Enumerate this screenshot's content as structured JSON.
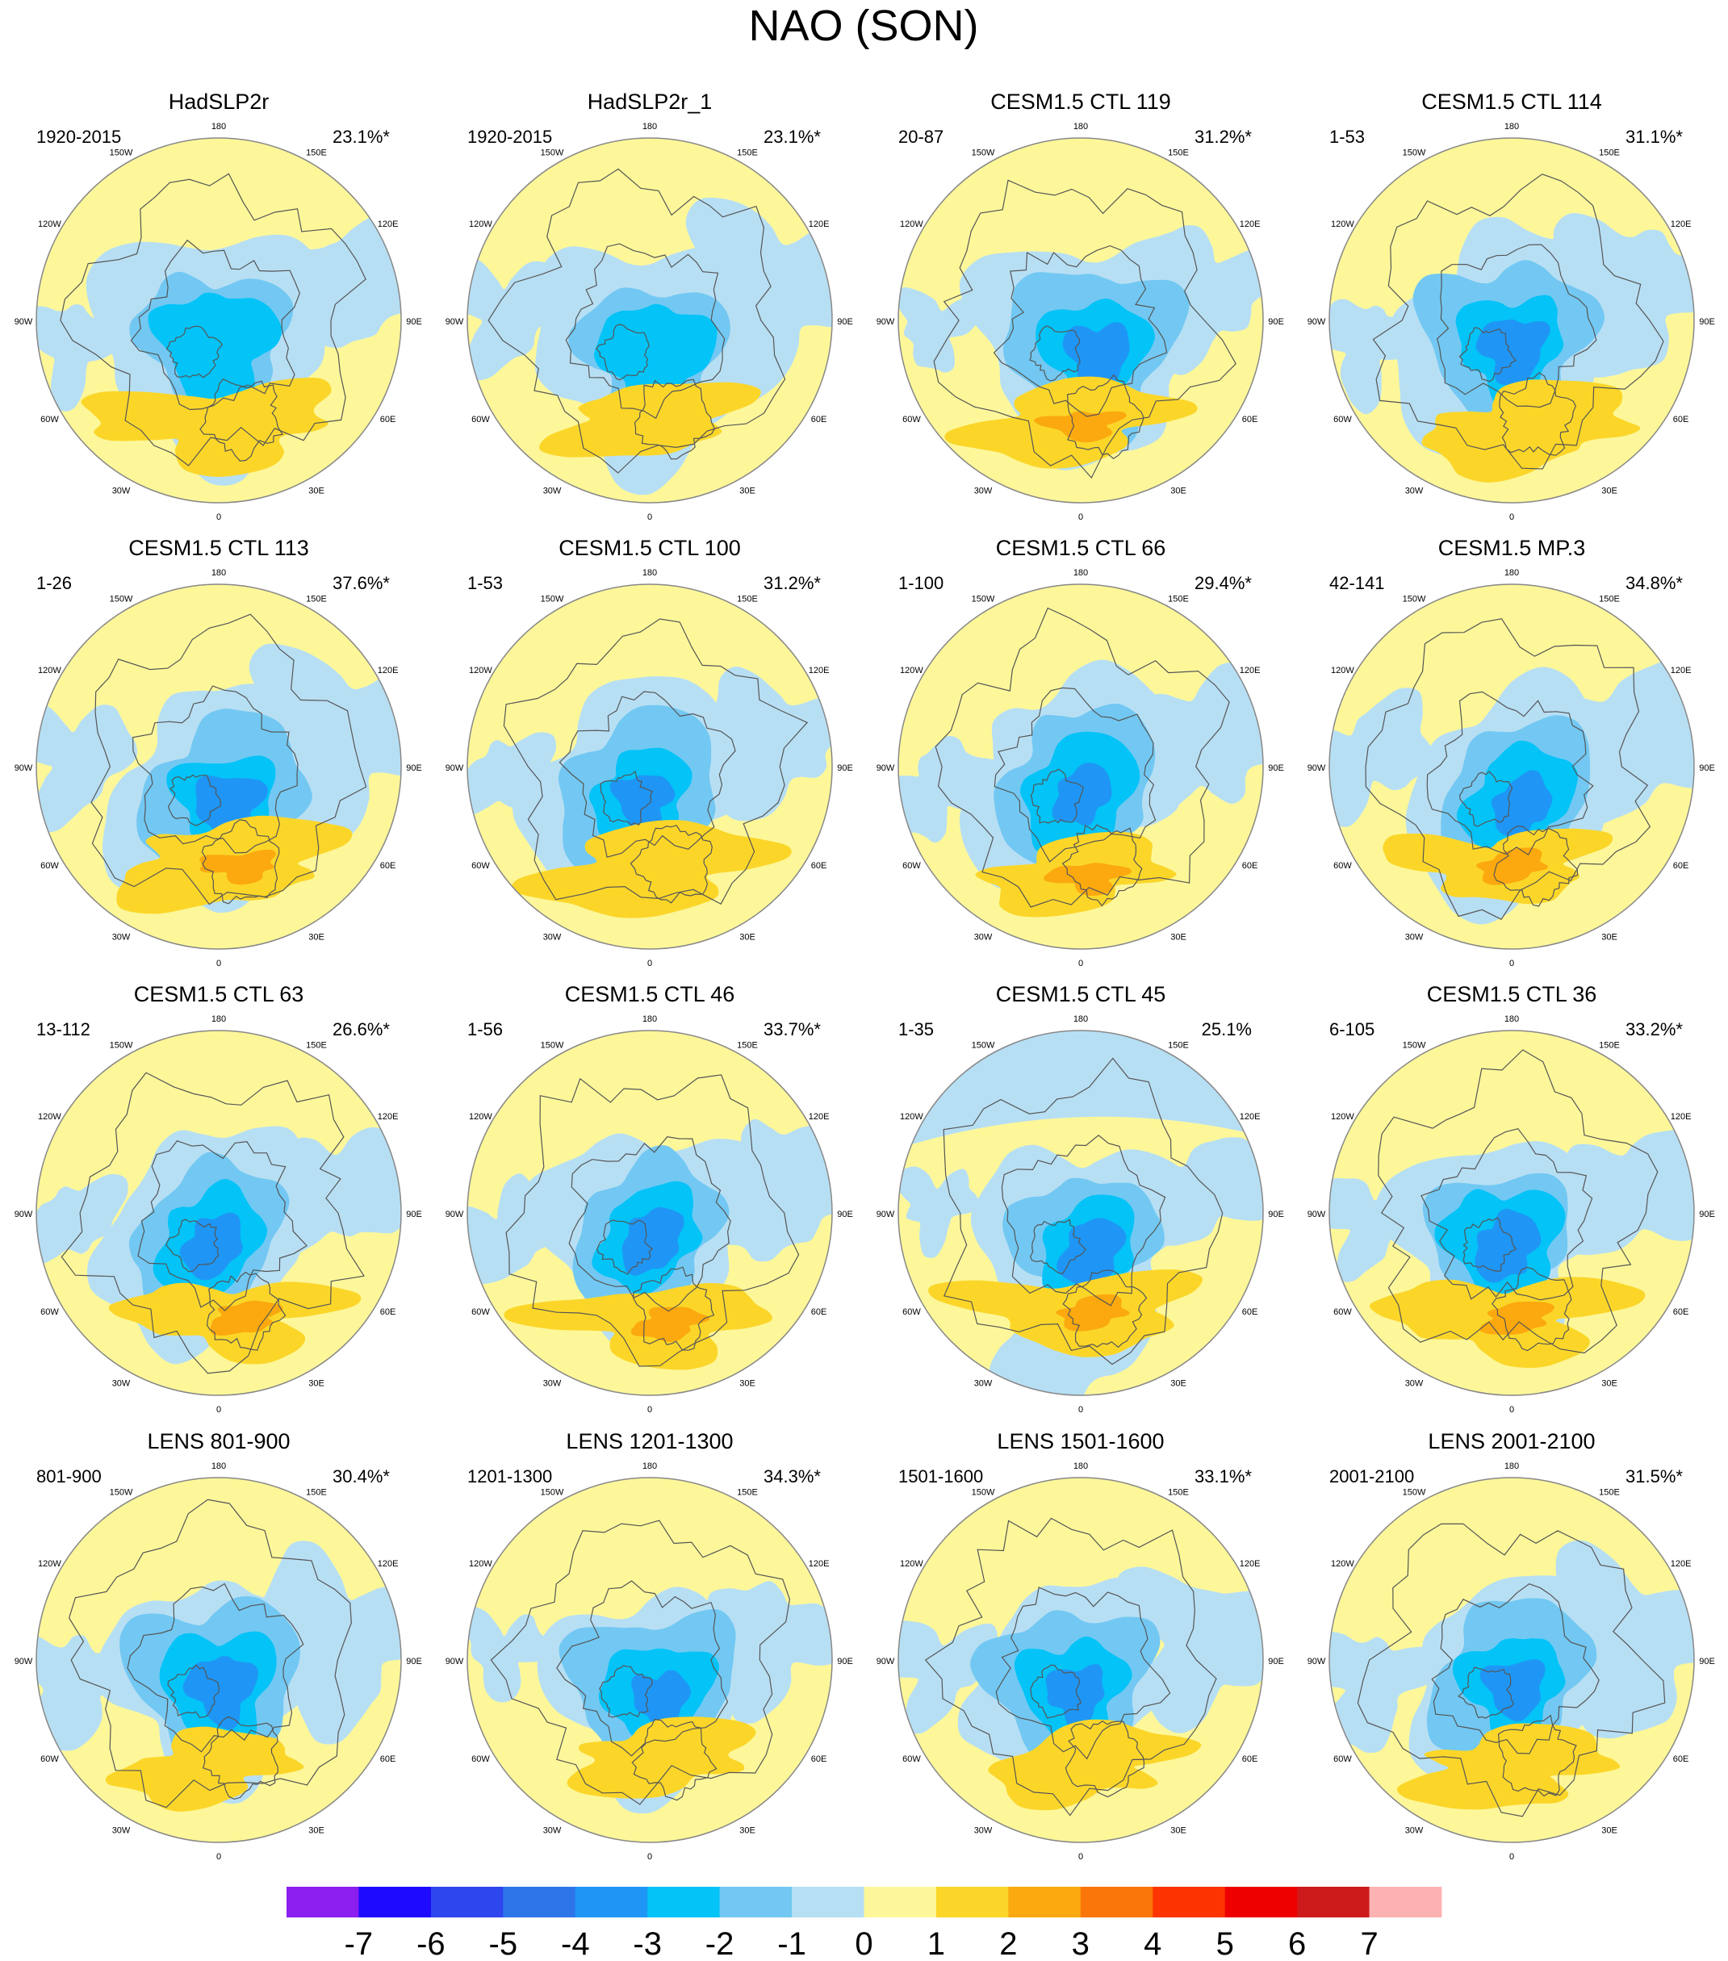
{
  "chart_data": {
    "type": "polar-contour-map-panels",
    "title": "NAO (SON)",
    "field_units": "",
    "longitude_labels": [
      "180",
      "150E",
      "120E",
      "90E",
      "60E",
      "30E",
      "0",
      "30W",
      "60W",
      "90W",
      "120W",
      "150W"
    ],
    "colorbar": {
      "ticks": [
        "-7",
        "-6",
        "-5",
        "-4",
        "-3",
        "-2",
        "-1",
        "0",
        "1",
        "2",
        "3",
        "4",
        "5",
        "6",
        "7"
      ],
      "colors": [
        "#8a1ff0",
        "#1e0aff",
        "#2d46ee",
        "#2f75ea",
        "#1f96f5",
        "#03c3f7",
        "#72c8f2",
        "#b7dff4",
        "#fdf79a",
        "#fbd629",
        "#fba90e",
        "#fb760a",
        "#fd3402",
        "#ee0000",
        "#cd1a1a",
        "#fcb2b2"
      ]
    },
    "panels": [
      {
        "name": "HadSLP2r",
        "period": "1920-2015",
        "variance": "23.1%*"
      },
      {
        "name": "HadSLP2r_1",
        "period": "1920-2015",
        "variance": "23.1%*"
      },
      {
        "name": "CESM1.5 CTL 119",
        "period": "20-87",
        "variance": "31.2%*"
      },
      {
        "name": "CESM1.5 CTL 114",
        "period": "1-53",
        "variance": "31.1%*"
      },
      {
        "name": "CESM1.5 CTL 113",
        "period": "1-26",
        "variance": "37.6%*"
      },
      {
        "name": "CESM1.5 CTL 100",
        "period": "1-53",
        "variance": "31.2%*"
      },
      {
        "name": "CESM1.5 CTL 66",
        "period": "1-100",
        "variance": "29.4%*"
      },
      {
        "name": "CESM1.5 MP.3",
        "period": "42-141",
        "variance": "34.8%*"
      },
      {
        "name": "CESM1.5 CTL 63",
        "period": "13-112",
        "variance": "26.6%*"
      },
      {
        "name": "CESM1.5 CTL 46",
        "period": "1-56",
        "variance": "33.7%*"
      },
      {
        "name": "CESM1.5 CTL 45",
        "period": "1-35",
        "variance": "25.1%"
      },
      {
        "name": "CESM1.5 CTL 36",
        "period": "6-105",
        "variance": "33.2%*"
      },
      {
        "name": "LENS 801-900",
        "period": "801-900",
        "variance": "30.4%*"
      },
      {
        "name": "LENS 1201-1300",
        "period": "1201-1300",
        "variance": "34.3%*"
      },
      {
        "name": "LENS 1501-1600",
        "period": "1501-1600",
        "variance": "33.1%*"
      },
      {
        "name": "LENS 2001-2100",
        "period": "2001-2100",
        "variance": "31.5%*"
      }
    ]
  }
}
